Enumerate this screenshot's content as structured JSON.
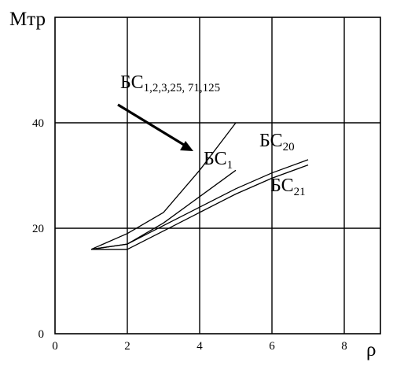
{
  "chart_data": {
    "type": "line",
    "title": "",
    "xlabel": "ρ",
    "ylabel": "Мтр",
    "xlim": [
      0,
      9
    ],
    "ylim": [
      0,
      60
    ],
    "x_ticks": [
      "0",
      "2",
      "4",
      "6",
      "8"
    ],
    "y_ticks": [
      "0",
      "20",
      "40"
    ],
    "grid": true,
    "series": [
      {
        "name": "БС1,2,3,25, 71,125",
        "label_main": "БС",
        "label_sub": "1,2,3,25, 71,125",
        "points": [
          [
            1,
            16
          ],
          [
            2,
            19
          ],
          [
            3,
            23
          ],
          [
            4,
            31
          ],
          [
            5,
            40
          ]
        ]
      },
      {
        "name": "БС1",
        "label_main": "БС",
        "label_sub": "1",
        "points": [
          [
            1,
            16
          ],
          [
            2,
            17
          ],
          [
            3,
            21
          ],
          [
            4,
            26
          ],
          [
            5,
            31
          ]
        ]
      },
      {
        "name": "БС20",
        "label_main": "БС",
        "label_sub": "20",
        "points": [
          [
            1,
            16
          ],
          [
            2,
            17
          ],
          [
            3,
            20.5
          ],
          [
            4,
            24
          ],
          [
            5,
            27.5
          ],
          [
            6,
            30.5
          ],
          [
            7,
            33
          ]
        ]
      },
      {
        "name": "БС21",
        "label_main": "БС",
        "label_sub": "21",
        "points": [
          [
            1,
            16
          ],
          [
            2,
            16
          ],
          [
            3,
            19.5
          ],
          [
            4,
            23
          ],
          [
            5,
            26.5
          ],
          [
            6,
            29.5
          ],
          [
            7,
            32
          ]
        ]
      }
    ]
  }
}
